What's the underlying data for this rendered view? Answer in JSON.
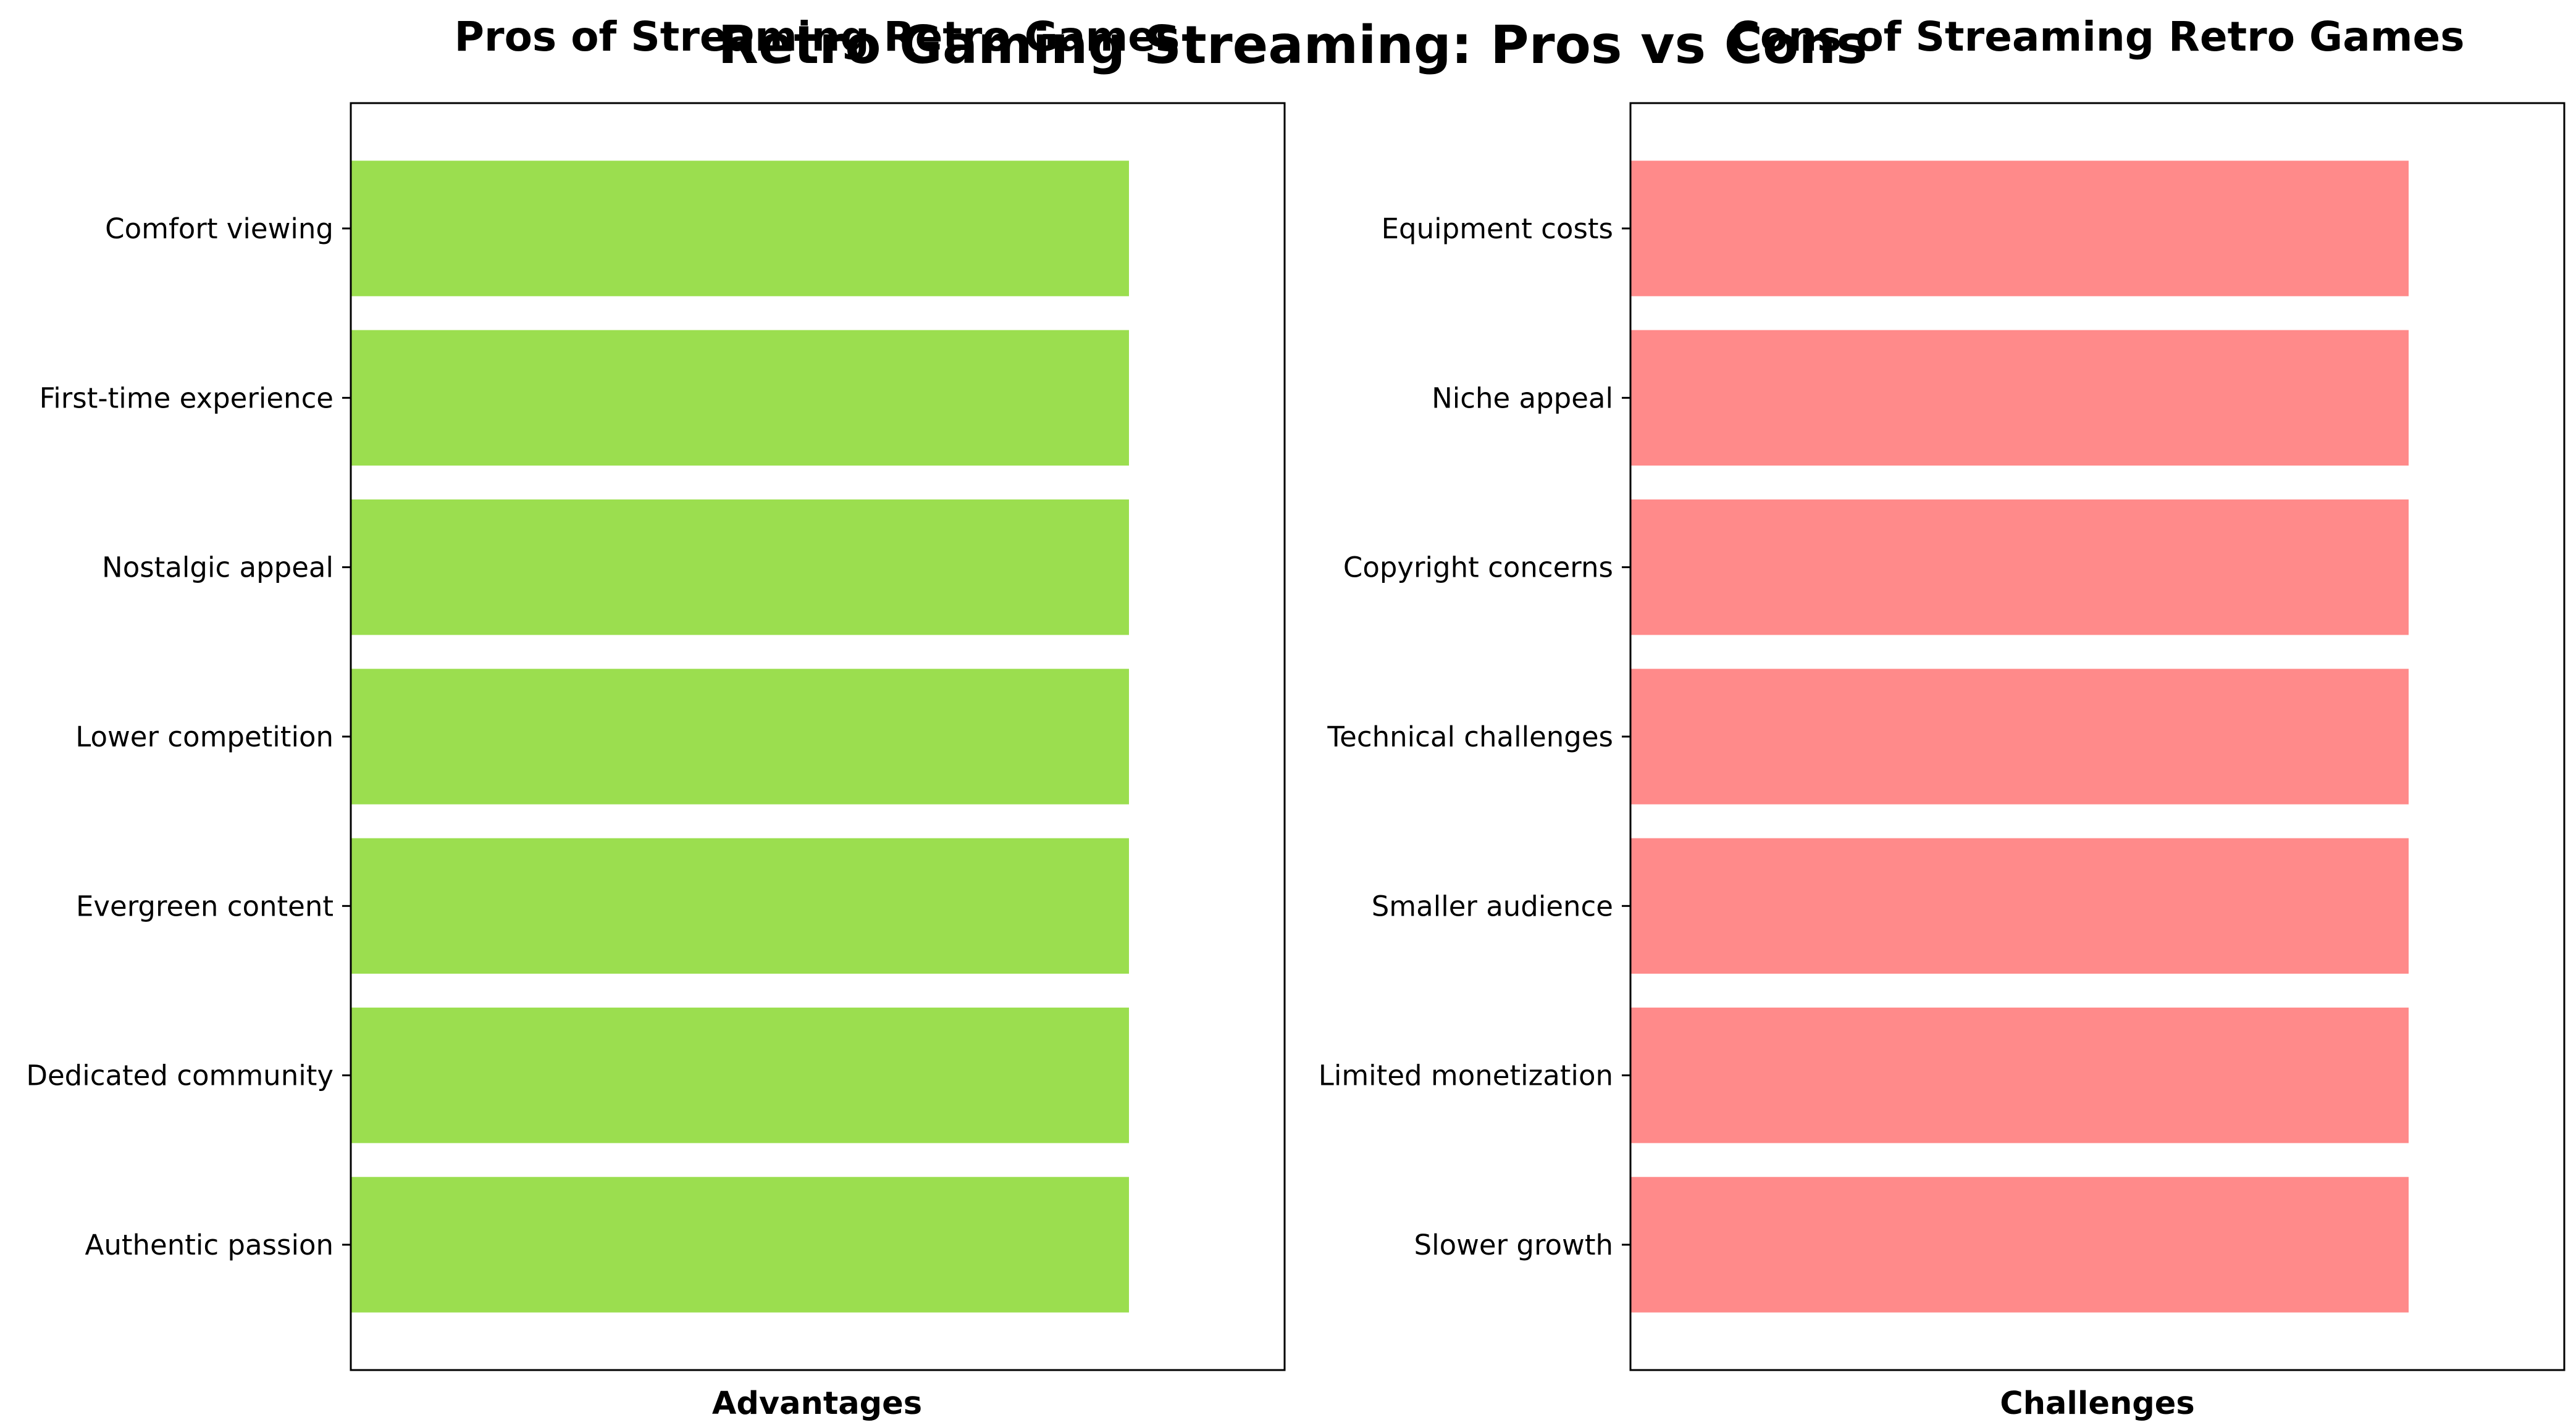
{
  "chart_data": [
    {
      "type": "bar",
      "orientation": "horizontal",
      "title": "Pros of Streaming Retro Games",
      "xlabel": "Advantages",
      "ylabel": "",
      "categories": [
        "Comfort viewing",
        "First-time experience",
        "Nostalgic appeal",
        "Lower competition",
        "Evergreen content",
        "Dedicated community",
        "Authentic passion"
      ],
      "values": [
        1,
        1,
        1,
        1,
        1,
        1,
        1
      ],
      "xlim": [
        0,
        1.2
      ],
      "color": "#9bde4f",
      "grid": false,
      "legend": false
    },
    {
      "type": "bar",
      "orientation": "horizontal",
      "title": "Cons of Streaming Retro Games",
      "xlabel": "Challenges",
      "ylabel": "",
      "categories": [
        "Equipment costs",
        "Niche appeal",
        "Copyright concerns",
        "Technical challenges",
        "Smaller audience",
        "Limited monetization",
        "Slower growth"
      ],
      "values": [
        1,
        1,
        1,
        1,
        1,
        1,
        1
      ],
      "xlim": [
        0,
        1.2
      ],
      "color": "#ff8a8a",
      "grid": false,
      "legend": false
    }
  ],
  "figure": {
    "title": "Retro Gaming Streaming: Pros vs Cons"
  }
}
